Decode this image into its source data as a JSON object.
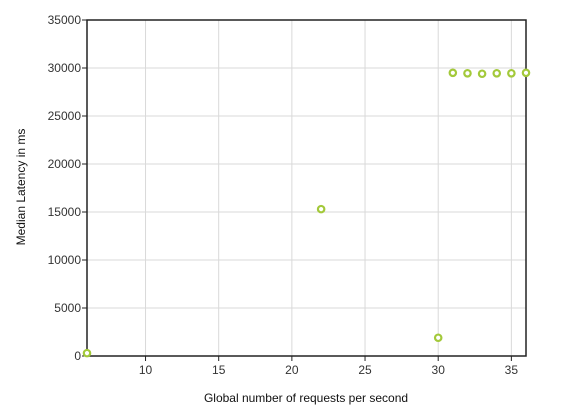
{
  "chart_data": {
    "type": "scatter",
    "title": "",
    "xlabel": "Global number of requests per second",
    "ylabel": "Median Latency in ms",
    "xlim": [
      6,
      36
    ],
    "ylim": [
      0,
      35000
    ],
    "x_ticks": [
      10,
      15,
      20,
      25,
      30,
      35
    ],
    "y_ticks": [
      0,
      5000,
      10000,
      15000,
      20000,
      25000,
      30000,
      35000
    ],
    "grid": true,
    "legend": "none",
    "marker_color": "#a3c93a",
    "series": [
      {
        "x": [
          6,
          22,
          30,
          31,
          32,
          33,
          34,
          35,
          36
        ],
        "y": [
          300,
          15300,
          1900,
          29500,
          29450,
          29400,
          29450,
          29450,
          29500
        ]
      }
    ]
  }
}
